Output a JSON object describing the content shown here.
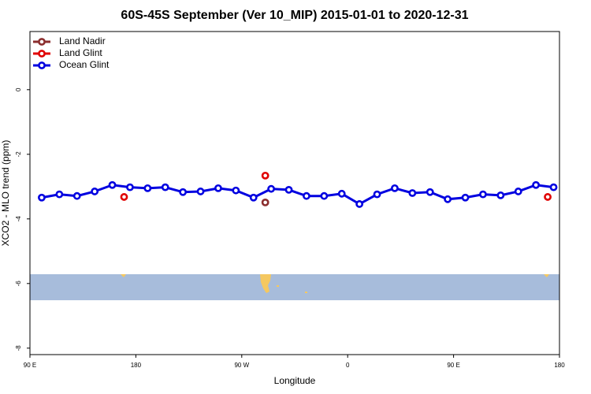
{
  "chart_data": {
    "type": "line",
    "title": "60S-45S September (Ver 10_MIP)   2015-01-01 to 2020-12-31",
    "xlabel": "Longitude",
    "ylabel": "XCO2 - MLO trend (ppm)",
    "xlim": [
      90,
      540
    ],
    "ylim": [
      -8.2,
      1.8
    ],
    "xticks": [
      {
        "value": 90,
        "label": "90 E"
      },
      180,
      {
        "value": 270,
        "label": "90 W"
      },
      {
        "value": 360,
        "label": "0"
      },
      {
        "value": 450,
        "label": "90 E"
      },
      {
        "value": 540,
        "label": "180"
      }
    ],
    "yticks": [
      -8,
      -6,
      -4,
      -2,
      0
    ],
    "legend": "top-left",
    "series": [
      {
        "name": "Land Nadir",
        "color": "#8b2e2e",
        "lines": false,
        "x": [
          290
        ],
        "values": [
          -3.49
        ]
      },
      {
        "name": "Land Glint",
        "color": "#e00000",
        "lines": false,
        "x": [
          170,
          290,
          530
        ],
        "values": [
          -3.32,
          -2.66,
          -3.32
        ]
      },
      {
        "name": "Ocean Glint",
        "color": "#0000e0",
        "lines": true,
        "x": [
          100,
          115,
          130,
          145,
          160,
          175,
          190,
          205,
          220,
          235,
          250,
          265,
          280,
          295,
          310,
          325,
          340,
          355,
          370,
          385,
          400,
          415,
          430,
          445,
          460,
          475,
          490,
          505,
          520,
          535
        ],
        "values": [
          -3.34,
          -3.24,
          -3.29,
          -3.15,
          -2.95,
          -3.02,
          -3.05,
          -3.02,
          -3.17,
          -3.15,
          -3.05,
          -3.12,
          -3.34,
          -3.07,
          -3.1,
          -3.29,
          -3.29,
          -3.22,
          -3.54,
          -3.24,
          -3.05,
          -3.2,
          -3.17,
          -3.39,
          -3.34,
          -3.24,
          -3.27,
          -3.15,
          -2.95,
          -3.02
        ]
      }
    ]
  }
}
